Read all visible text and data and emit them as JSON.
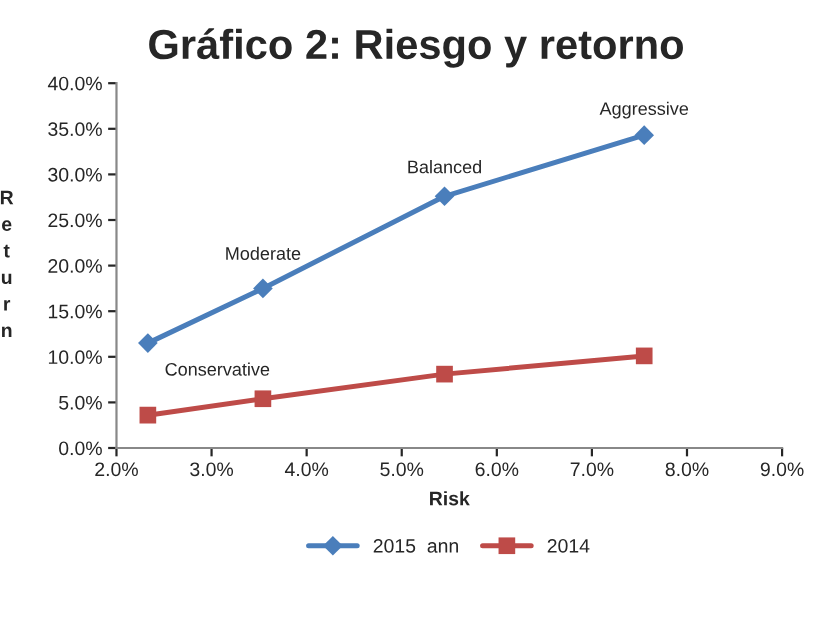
{
  "chart_data": {
    "type": "line",
    "title": "Gráfico 2: Riesgo y retorno",
    "xlabel": "Risk",
    "ylabel": "Return",
    "series": [
      {
        "name": "2015  ann",
        "color": "#4a7ebb",
        "marker": "diamond",
        "x": [
          2.33,
          3.54,
          5.45,
          7.55
        ],
        "values": [
          11.5,
          17.5,
          27.6,
          34.3
        ]
      },
      {
        "name": "2014",
        "color": "#be4b48",
        "marker": "square",
        "x": [
          2.33,
          3.54,
          5.45,
          7.55
        ],
        "values": [
          3.6,
          5.4,
          8.1,
          10.1
        ]
      }
    ],
    "annotations": [
      {
        "text": "Conservative",
        "x": 2.33,
        "y": 11.5
      },
      {
        "text": "Moderate",
        "x": 3.54,
        "y": 17.5
      },
      {
        "text": "Balanced",
        "x": 5.45,
        "y": 27.6
      },
      {
        "text": "Aggressive",
        "x": 7.55,
        "y": 34.3
      }
    ],
    "xlim": [
      2,
      9
    ],
    "xticks": [
      {
        "value": 2,
        "label": "2.0%"
      },
      {
        "value": 3,
        "label": "3.0%"
      },
      {
        "value": 4,
        "label": "4.0%"
      },
      {
        "value": 5,
        "label": "5.0%"
      },
      {
        "value": 6,
        "label": "6.0%"
      },
      {
        "value": 7,
        "label": "7.0%"
      },
      {
        "value": 8,
        "label": "8.0%"
      },
      {
        "value": 9,
        "label": "9.0%"
      }
    ],
    "ylim": [
      0,
      40
    ],
    "yticks": [
      {
        "value": 0,
        "label": "0.0%"
      },
      {
        "value": 5,
        "label": "5.0%"
      },
      {
        "value": 10,
        "label": "10.0%"
      },
      {
        "value": 15,
        "label": "15.0%"
      },
      {
        "value": 20,
        "label": "20.0%"
      },
      {
        "value": 25,
        "label": "25.0%"
      },
      {
        "value": 30,
        "label": "30.0%"
      },
      {
        "value": 35,
        "label": "35.0%"
      },
      {
        "value": 40,
        "label": "40.0%"
      }
    ],
    "grid": false,
    "legend": "bottom",
    "line_style": "solid"
  }
}
